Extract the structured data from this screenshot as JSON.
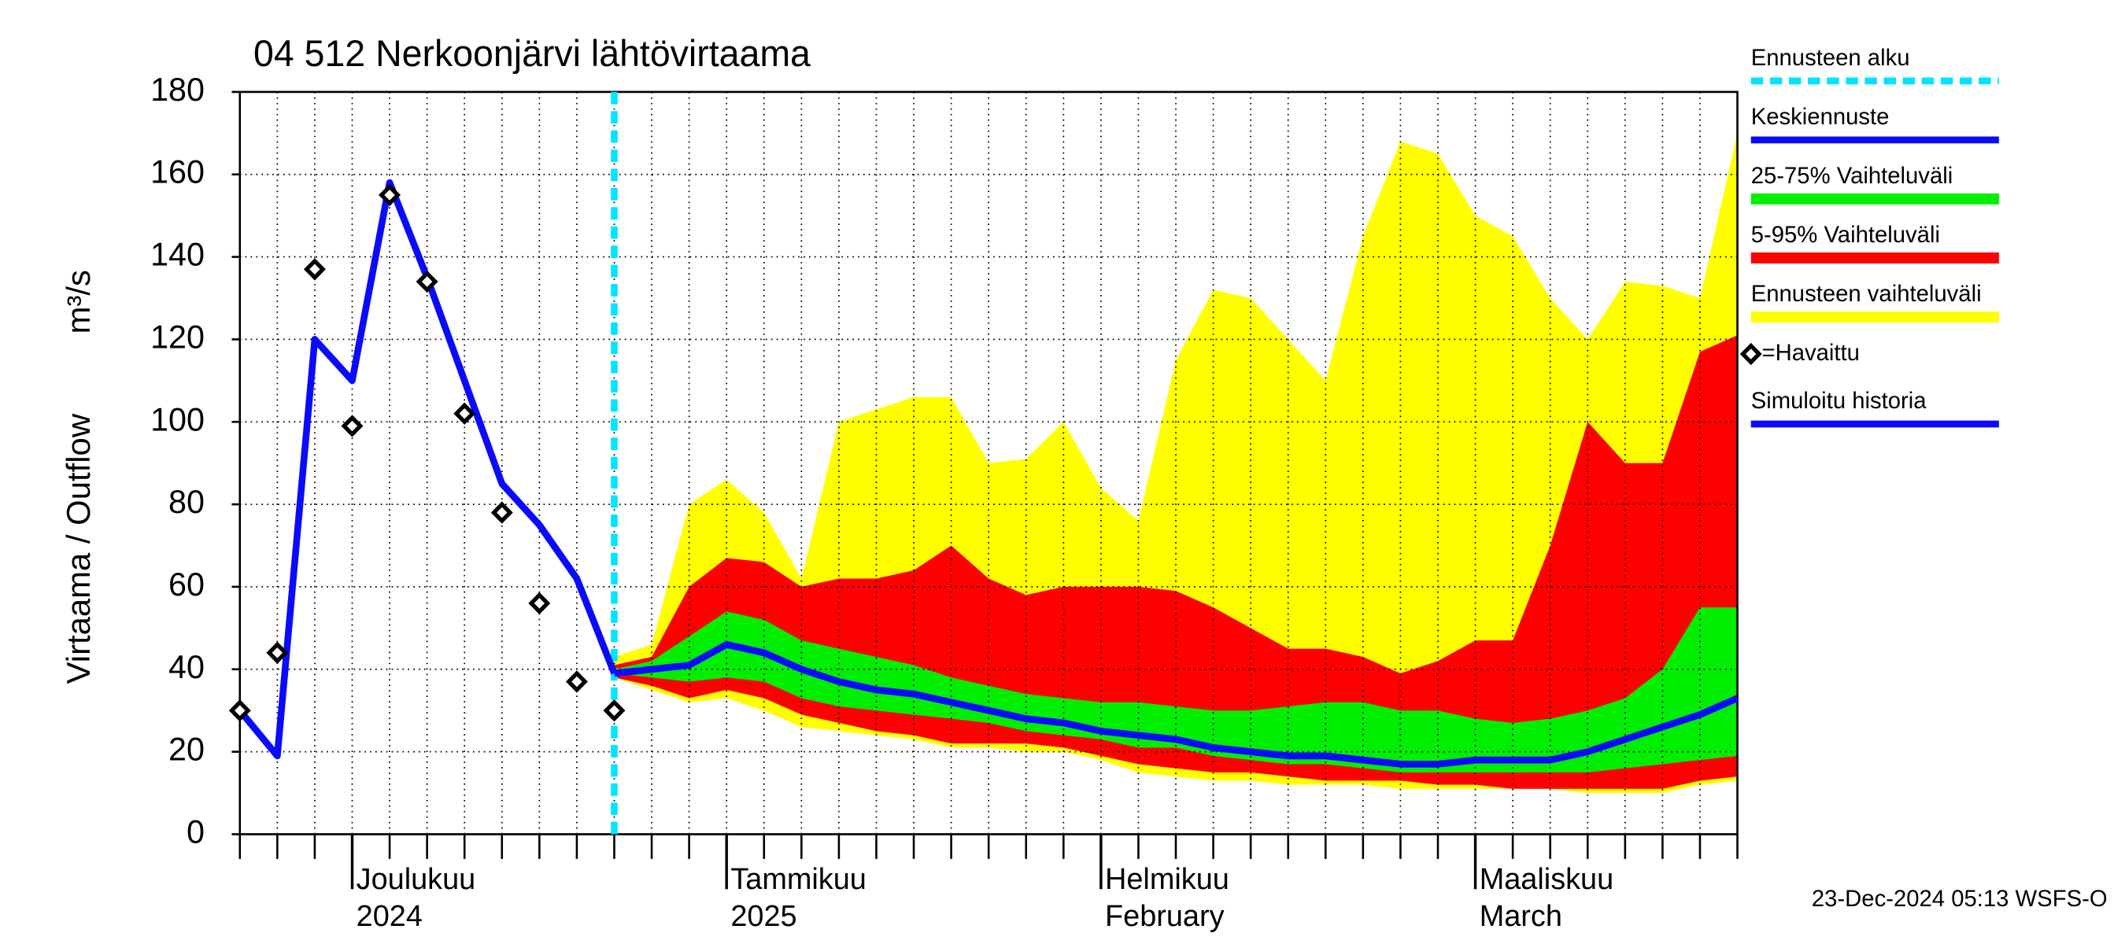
{
  "chart_data": {
    "type": "line",
    "title": "04 512 Nerkoonjärvi lähtövirtaama",
    "ylabel": "Virtaama / Outflow",
    "yunit": "m³/s",
    "footer": "23-Dec-2024 05:13 WSFS-O",
    "categories": [
      null,
      null,
      null,
      "Joulukuu",
      null,
      null,
      null,
      null,
      null,
      null,
      null,
      null,
      null,
      "Tammikuu",
      null,
      null,
      null,
      null,
      null,
      null,
      null,
      null,
      null,
      "Helmikuu",
      null,
      null,
      null,
      null,
      null,
      null,
      null,
      null,
      null,
      "Maaliskuu",
      null,
      null,
      null,
      null,
      null,
      null,
      null
    ],
    "category_sublabels": [
      null,
      null,
      null,
      "2024",
      null,
      null,
      null,
      null,
      null,
      null,
      null,
      null,
      null,
      "2025",
      null,
      null,
      null,
      null,
      null,
      null,
      null,
      null,
      null,
      "February",
      null,
      null,
      null,
      null,
      null,
      null,
      null,
      null,
      null,
      "March",
      null,
      null,
      null,
      null,
      null,
      null,
      null
    ],
    "ylim": [
      0,
      180
    ],
    "yticks": [
      0,
      20,
      40,
      60,
      80,
      100,
      120,
      140,
      160,
      180
    ],
    "grid": true,
    "series": [
      {
        "name": "Ennusteen alku",
        "type": "vline",
        "color": "#00e5ff"
      },
      {
        "name": "Keskiennuste",
        "type": "line",
        "color": "#0a0aff",
        "values": [
          null,
          null,
          null,
          null,
          null,
          null,
          null,
          null,
          null,
          null,
          39,
          40,
          41,
          46,
          44,
          40,
          37,
          35,
          34,
          32,
          30,
          28,
          27,
          25,
          24,
          23,
          21,
          20,
          19,
          19,
          18,
          17,
          17,
          18,
          18,
          18,
          20,
          23,
          26,
          29,
          33
        ]
      },
      {
        "name": "25-75% Vaihteluväli",
        "type": "band",
        "color": "#00ee00",
        "low": [
          null,
          null,
          null,
          null,
          null,
          null,
          null,
          null,
          null,
          null,
          39,
          38,
          37,
          38,
          37,
          33,
          31,
          30,
          29,
          28,
          27,
          25,
          24,
          23,
          21,
          21,
          19,
          18,
          17,
          17,
          16,
          15,
          15,
          15,
          15,
          15,
          15,
          16,
          17,
          18,
          19
        ],
        "high": [
          null,
          null,
          null,
          null,
          null,
          null,
          null,
          null,
          null,
          null,
          40,
          42,
          48,
          54,
          52,
          47,
          45,
          43,
          41,
          38,
          36,
          34,
          33,
          32,
          32,
          31,
          30,
          30,
          31,
          32,
          32,
          30,
          30,
          28,
          27,
          28,
          30,
          33,
          40,
          55,
          55
        ]
      },
      {
        "name": "5-95% Vaihteluväli",
        "type": "band",
        "color": "#ff0000",
        "low": [
          null,
          null,
          null,
          null,
          null,
          null,
          null,
          null,
          null,
          null,
          38,
          36,
          33,
          35,
          33,
          29,
          27,
          25,
          24,
          22,
          22,
          22,
          21,
          19,
          17,
          16,
          15,
          15,
          14,
          13,
          13,
          13,
          12,
          12,
          11,
          11,
          11,
          11,
          11,
          13,
          14
        ],
        "high": [
          null,
          null,
          null,
          null,
          null,
          null,
          null,
          null,
          null,
          null,
          41,
          43,
          60,
          67,
          66,
          60,
          62,
          62,
          64,
          70,
          62,
          58,
          60,
          60,
          60,
          59,
          55,
          50,
          45,
          45,
          43,
          39,
          42,
          47,
          47,
          70,
          100,
          90,
          90,
          117,
          121
        ]
      },
      {
        "name": "Ennusteen vaihteluväli",
        "type": "band",
        "color": "#ffff00",
        "low": [
          null,
          null,
          null,
          null,
          null,
          null,
          null,
          null,
          null,
          null,
          38,
          35,
          32,
          33,
          30,
          26,
          25,
          24,
          23,
          21,
          21,
          20,
          20,
          18,
          15,
          14,
          13,
          13,
          12,
          12,
          12,
          11,
          11,
          11,
          11,
          11,
          10,
          10,
          10,
          12,
          13
        ],
        "high": [
          null,
          null,
          null,
          null,
          null,
          null,
          null,
          null,
          null,
          null,
          43,
          46,
          80,
          86,
          78,
          62,
          100,
          103,
          106,
          106,
          90,
          91,
          100,
          84,
          76,
          115,
          132,
          130,
          120,
          110,
          145,
          168,
          165,
          150,
          145,
          130,
          120,
          134,
          133,
          130,
          170
        ]
      },
      {
        "name": "=Havaittu",
        "type": "scatter",
        "color": "#000000",
        "values": [
          30,
          44,
          137,
          99,
          155,
          134,
          102,
          78,
          56,
          37,
          30,
          null,
          null,
          null,
          null,
          null,
          null,
          null,
          null,
          null,
          null,
          null,
          null,
          null,
          null,
          null,
          null,
          null,
          null,
          null,
          null,
          null,
          null,
          null,
          null,
          null,
          null,
          null,
          null,
          null,
          null
        ]
      },
      {
        "name": "Simuloitu historia",
        "type": "line",
        "color": "#0a0aff",
        "values": [
          30,
          19,
          120,
          110,
          158,
          135,
          110,
          85,
          75,
          62,
          39,
          null,
          null,
          null,
          null,
          null,
          null,
          null,
          null,
          null,
          null,
          null,
          null,
          null,
          null,
          null,
          null,
          null,
          null,
          null,
          null,
          null,
          null,
          null,
          null,
          null,
          null,
          null,
          null,
          null,
          null
        ]
      }
    ]
  }
}
